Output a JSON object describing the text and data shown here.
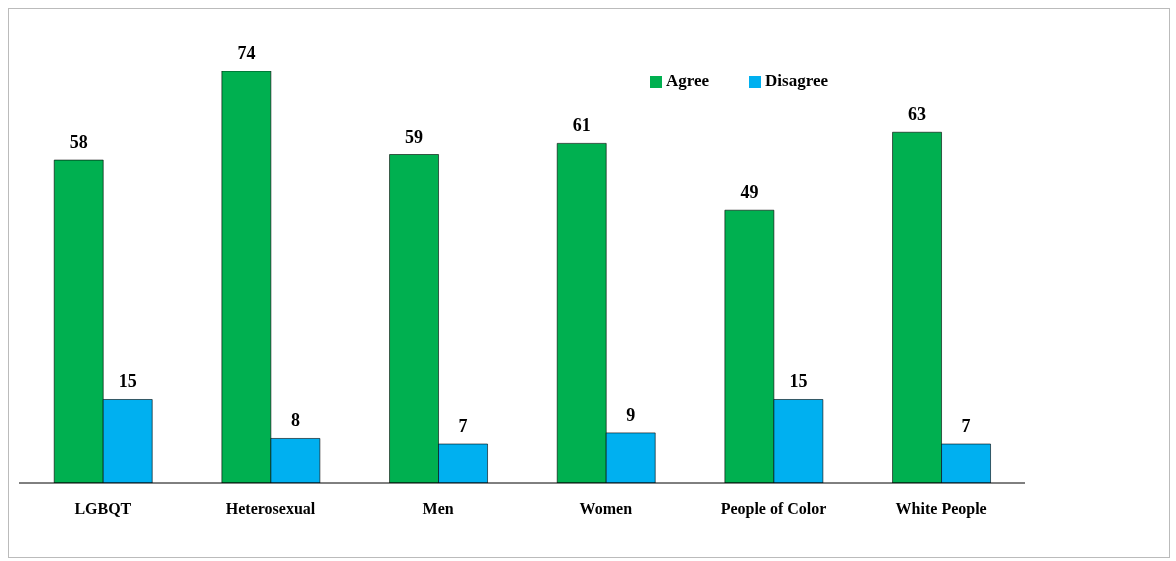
{
  "chart_data": {
    "type": "bar",
    "categories": [
      "LGBQT",
      "Heterosexual",
      "Men",
      "Women",
      "People of Color",
      "White People"
    ],
    "series": [
      {
        "name": "Agree",
        "color": "#00b050",
        "values": [
          58,
          74,
          59,
          61,
          49,
          63
        ]
      },
      {
        "name": "Disagree",
        "color": "#00b0f0",
        "values": [
          15,
          8,
          7,
          9,
          15,
          7
        ]
      }
    ],
    "data_labels": true,
    "legend": "top right",
    "grid": false
  }
}
